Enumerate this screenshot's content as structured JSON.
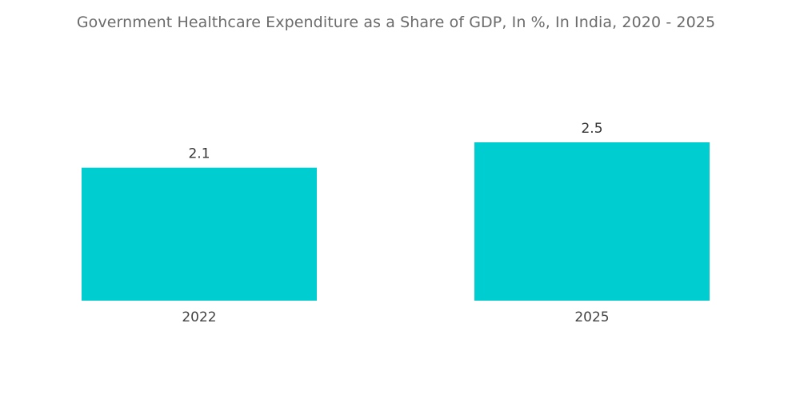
{
  "chart_data": {
    "type": "bar",
    "title": "Government Healthcare Expenditure as a Share of GDP, In %, In India, 2020 - 2025",
    "categories": [
      "2022",
      "2025"
    ],
    "values": [
      2.1,
      2.5
    ],
    "data_labels": [
      "2.1",
      "2.5"
    ],
    "xlabel": "",
    "ylabel": "",
    "ylim": [
      0,
      2.5
    ],
    "grid": false,
    "legend": "none",
    "colors": {
      "bar": "#00cdd0"
    }
  }
}
